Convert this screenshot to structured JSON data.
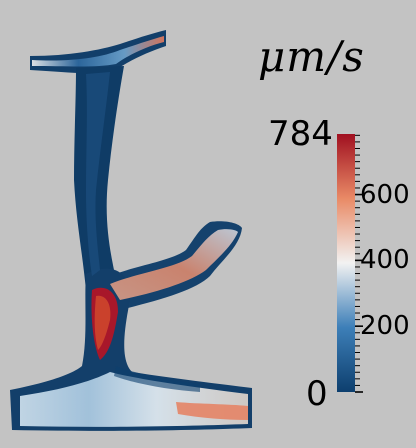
{
  "colorbar": {
    "unit": "μm/s",
    "min": "0",
    "max": "784",
    "tick_labels": [
      "600",
      "400",
      "200"
    ],
    "tick_values": [
      600,
      400,
      200
    ],
    "range": [
      0,
      784
    ],
    "colors": {
      "low": "#0d3f6e",
      "mid_low": "#4a8ec2",
      "mid": "#f2f2f2",
      "mid_high": "#e98a66",
      "high": "#a01020"
    }
  }
}
